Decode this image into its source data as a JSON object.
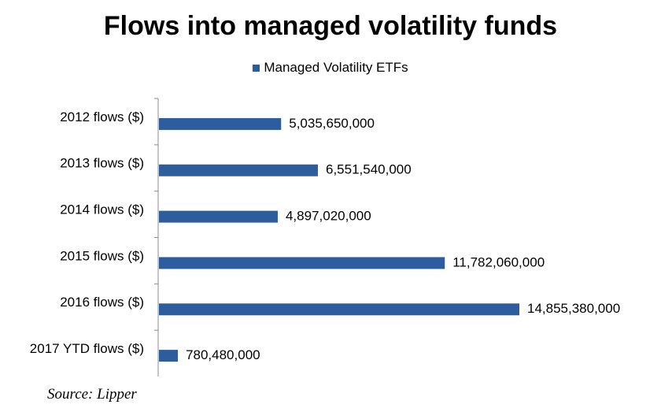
{
  "chart_data": {
    "type": "bar",
    "orientation": "horizontal",
    "title": "Flows into managed volatility funds",
    "categories": [
      "2012 flows ($)",
      "2013 flows ($)",
      "2014 flows ($)",
      "2015 flows ($)",
      "2016 flows ($)",
      "2017 YTD flows ($)"
    ],
    "series": [
      {
        "name": "Managed Volatility ETFs",
        "color": "#2E5D9E",
        "values": [
          5035650000,
          6551540000,
          4897020000,
          11782060000,
          14855380000,
          780480000
        ],
        "labels": [
          "5,035,650,000",
          "6,551,540,000",
          "4,897,020,000",
          "11,782,060,000",
          "14,855,380,000",
          "780,480,000"
        ]
      }
    ],
    "xlim": [
      0,
      16000000000
    ],
    "grid": false,
    "legend_position": "top-center",
    "source": "Source: Lipper"
  }
}
